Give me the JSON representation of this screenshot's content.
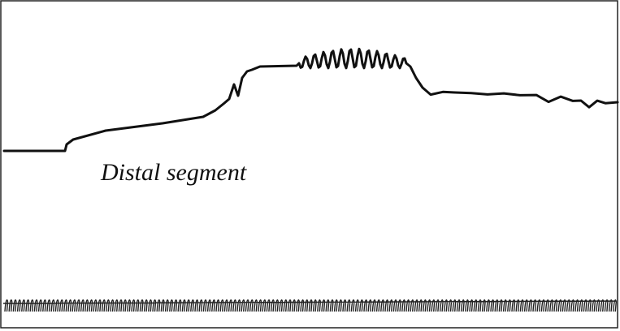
{
  "figure": {
    "label": "Distal segment"
  }
}
